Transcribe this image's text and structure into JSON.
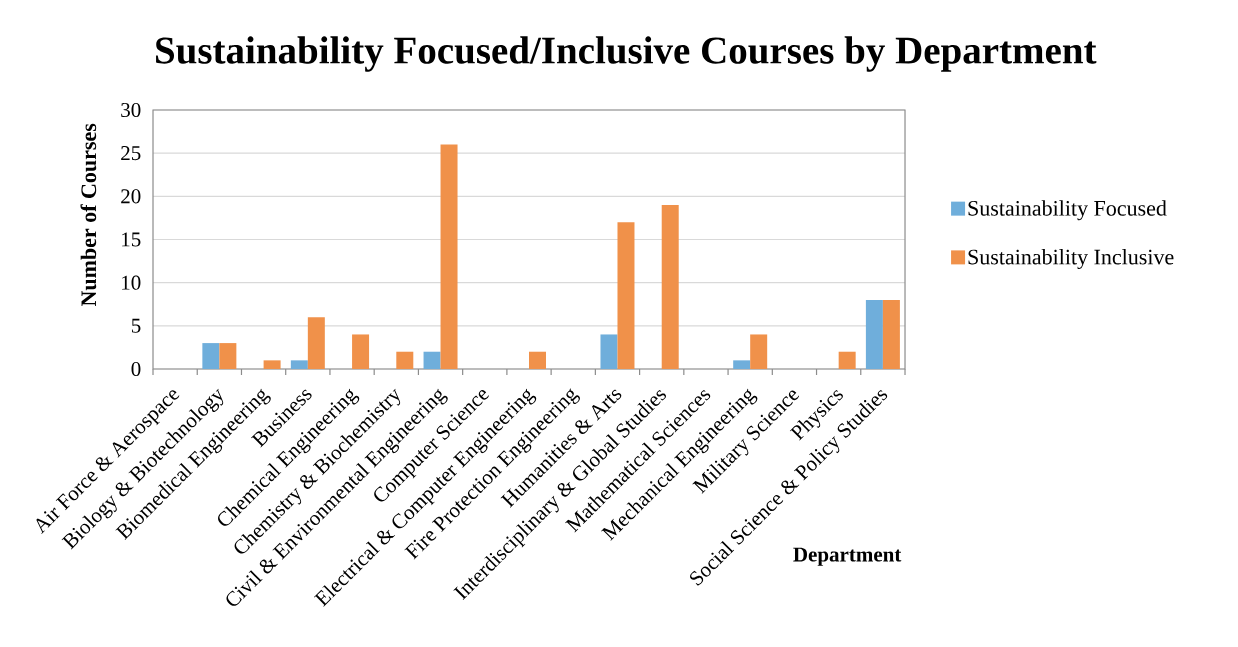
{
  "chart_data": {
    "type": "bar",
    "title": "Sustainability Focused/Inclusive Courses by Department",
    "xlabel": "Department",
    "ylabel": "Number of Courses",
    "categories": [
      "Air Force & Aerospace",
      "Biology & Biotechnology",
      "Biomedical Engineering",
      "Business",
      "Chemical Engineering",
      "Chemistry & Biochemistry",
      "Civil & Environmental Engineering",
      "Computer Science",
      "Electrical & Computer Engineering",
      "Fire Protection Engineering",
      "Humanities & Arts",
      "Interdisciplinary & Global Studies",
      "Mathematical Sciences",
      "Mechanical Engineering",
      "Military Science",
      "Physics",
      "Social Science & Policy Studies"
    ],
    "series": [
      {
        "name": "Sustainability Focused",
        "color": "#6FAEDB",
        "values": [
          0,
          3,
          0,
          1,
          0,
          0,
          2,
          0,
          0,
          0,
          4,
          0,
          0,
          1,
          0,
          0,
          8
        ]
      },
      {
        "name": "Sustainability Inclusive",
        "color": "#F0914A",
        "values": [
          0,
          3,
          1,
          6,
          4,
          2,
          26,
          0,
          2,
          0,
          17,
          19,
          0,
          4,
          0,
          2,
          8
        ]
      }
    ],
    "ylim": [
      0,
      30
    ],
    "yticks": [
      0,
      5,
      10,
      15,
      20,
      25,
      30
    ],
    "grid": "y",
    "legend": "right"
  }
}
